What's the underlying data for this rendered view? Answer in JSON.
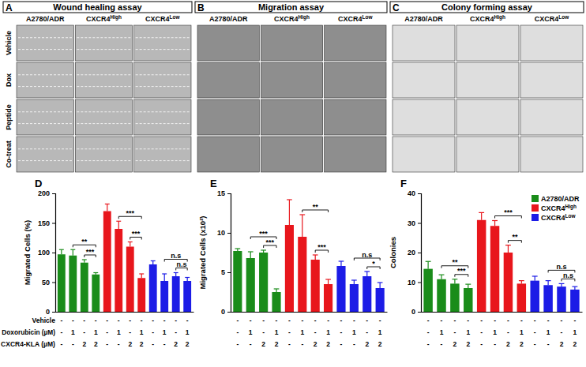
{
  "figure_panels": [
    {
      "panel_label": "A",
      "title": "Wound healing assay",
      "columns": [
        "A2780/ADR",
        "CXCR4High",
        "CXCR4Low"
      ],
      "rows": [
        "Vehicle",
        "Dox",
        "Peptide",
        "Co-treat"
      ]
    },
    {
      "panel_label": "B",
      "title": "Migration assay",
      "columns": [
        "A2780/ADR",
        "CXCR4High",
        "CXCR4Low"
      ]
    },
    {
      "panel_label": "C",
      "title": "Colony forming assay",
      "columns": [
        "A2780/ADR",
        "CXCR4High",
        "CXCR4Low"
      ]
    }
  ],
  "chart_data": [
    {
      "type": "bar",
      "panel_label": "D",
      "y_label": "Migrated Cells (%)",
      "categories": [
        null,
        null,
        null,
        null,
        null,
        null,
        null,
        null,
        null,
        null,
        null,
        null
      ],
      "series": [
        {
          "name": "A2780/ADR",
          "color": "#1a8c1a",
          "values": [
            97,
            95,
            83,
            63,
            null,
            null,
            null,
            null,
            null,
            null,
            null,
            null
          ],
          "errors": [
            8,
            10,
            5,
            3,
            null,
            null,
            null,
            null,
            null,
            null,
            null,
            null
          ]
        },
        {
          "name": "CXCR4High",
          "color": "#e8161c",
          "values": [
            null,
            null,
            null,
            null,
            170,
            140,
            110,
            57,
            null,
            null,
            null,
            null
          ],
          "errors": [
            null,
            null,
            null,
            null,
            12,
            13,
            8,
            7,
            null,
            null,
            null,
            null
          ]
        },
        {
          "name": "CXCR4Low",
          "color": "#1c1ce6",
          "values": [
            null,
            null,
            null,
            null,
            null,
            null,
            null,
            null,
            80,
            52,
            60,
            52
          ],
          "errors": [
            null,
            null,
            null,
            null,
            null,
            null,
            null,
            null,
            6,
            12,
            6,
            6
          ]
        }
      ],
      "ylim": [
        0,
        200
      ],
      "yticks": [
        0,
        50,
        100,
        150,
        200
      ],
      "grid": false,
      "tick_labels": "y",
      "x_table": [
        {
          "label": "Vehicle",
          "values": [
            "-",
            "-",
            "-",
            "-",
            "-",
            "-",
            "-",
            "-",
            "-",
            "-",
            "-",
            "-"
          ]
        },
        {
          "label": "Doxorubicin (µM)",
          "values": [
            "-",
            "1",
            "-",
            "1",
            "-",
            "1",
            "-",
            "1",
            "-",
            "1",
            "-",
            "1"
          ]
        },
        {
          "label": "CXCR4-KLA (µM)",
          "values": [
            "-",
            "-",
            "2",
            "2",
            "-",
            "-",
            "2",
            "2",
            "-",
            "-",
            "2",
            "2"
          ]
        }
      ],
      "annotations": [
        {
          "from": 2,
          "to": 3,
          "label": "***"
        },
        {
          "from": 1,
          "to": 3,
          "label": "**"
        },
        {
          "from": 6,
          "to": 7,
          "label": "***"
        },
        {
          "from": 5,
          "to": 7,
          "label": "***"
        },
        {
          "from": 10,
          "to": 11,
          "label": "n.s"
        },
        {
          "from": 9,
          "to": 11,
          "label": "n.s"
        }
      ]
    },
    {
      "type": "bar",
      "panel_label": "E",
      "y_label": "Migrated Cells (x10²)",
      "categories": [
        null,
        null,
        null,
        null,
        null,
        null,
        null,
        null,
        null,
        null,
        null,
        null
      ],
      "series": [
        {
          "name": "A2780/ADR",
          "color": "#1a8c1a",
          "values": [
            7.7,
            6.8,
            7.5,
            2.5,
            null,
            null,
            null,
            null,
            null,
            null,
            null,
            null
          ],
          "errors": [
            0.3,
            0.8,
            0.3,
            0.4,
            null,
            null,
            null,
            null,
            null,
            null,
            null,
            null
          ]
        },
        {
          "name": "CXCR4High",
          "color": "#e8161c",
          "values": [
            null,
            null,
            null,
            null,
            11,
            9.5,
            6.6,
            3.5,
            null,
            null,
            null,
            null
          ],
          "errors": [
            null,
            null,
            null,
            null,
            3.2,
            2.8,
            0.6,
            0.6,
            null,
            null,
            null,
            null
          ]
        },
        {
          "name": "CXCR4Low",
          "color": "#1c1ce6",
          "values": [
            null,
            null,
            null,
            null,
            null,
            null,
            null,
            null,
            5.8,
            3.5,
            4.5,
            3.0
          ],
          "errors": [
            null,
            null,
            null,
            null,
            null,
            null,
            null,
            null,
            0.6,
            0.5,
            0.6,
            0.7
          ]
        }
      ],
      "ylim": [
        0,
        15
      ],
      "yticks": [
        0,
        5,
        10,
        15
      ],
      "grid": false,
      "tick_labels": "y",
      "x_table": [
        {
          "values": [
            "-",
            "-",
            "-",
            "-",
            "-",
            "-",
            "-",
            "-",
            "-",
            "-",
            "-",
            "-"
          ]
        },
        {
          "values": [
            "-",
            "1",
            "-",
            "1",
            "-",
            "1",
            "-",
            "1",
            "-",
            "1",
            "-",
            "1"
          ]
        },
        {
          "values": [
            "-",
            "-",
            "2",
            "2",
            "-",
            "-",
            "2",
            "2",
            "-",
            "-",
            "2",
            "2"
          ]
        }
      ],
      "annotations": [
        {
          "from": 2,
          "to": 3,
          "label": "***"
        },
        {
          "from": 1,
          "to": 3,
          "label": "***"
        },
        {
          "from": 6,
          "to": 7,
          "label": "***"
        },
        {
          "from": 5,
          "to": 7,
          "label": "**"
        },
        {
          "from": 10,
          "to": 11,
          "label": "*"
        },
        {
          "from": 9,
          "to": 11,
          "label": "n.s"
        }
      ]
    },
    {
      "type": "bar",
      "panel_label": "F",
      "y_label": "Colonies",
      "categories": [
        null,
        null,
        null,
        null,
        null,
        null,
        null,
        null,
        null,
        null,
        null,
        null
      ],
      "series": [
        {
          "name": "A2780/ADR",
          "color": "#1a8c1a",
          "values": [
            14.5,
            11,
            9.5,
            8,
            null,
            null,
            null,
            null,
            null,
            null,
            null,
            null
          ],
          "errors": [
            2.5,
            1.5,
            1.5,
            1.3,
            null,
            null,
            null,
            null,
            null,
            null,
            null,
            null
          ]
        },
        {
          "name": "CXCR4High",
          "color": "#e8161c",
          "values": [
            null,
            null,
            null,
            null,
            31,
            29,
            20,
            9.5,
            null,
            null,
            null,
            null
          ],
          "errors": [
            null,
            null,
            null,
            null,
            2.5,
            1.8,
            2.5,
            1,
            null,
            null,
            null,
            null
          ]
        },
        {
          "name": "CXCR4Low",
          "color": "#1c1ce6",
          "values": [
            null,
            null,
            null,
            null,
            null,
            null,
            null,
            null,
            10.5,
            9,
            8.5,
            7.5
          ],
          "errors": [
            null,
            null,
            null,
            null,
            null,
            null,
            null,
            null,
            1.5,
            1.5,
            1,
            1
          ]
        }
      ],
      "ylim": [
        0,
        40
      ],
      "yticks": [
        0,
        10,
        20,
        30,
        40
      ],
      "grid": false,
      "tick_labels": "y",
      "legend": "upper right",
      "x_table": [
        {
          "values": [
            "-",
            "-",
            "-",
            "-",
            "-",
            "-",
            "-",
            "-",
            "-",
            "-",
            "-",
            "-"
          ]
        },
        {
          "values": [
            "-",
            "1",
            "-",
            "1",
            "-",
            "1",
            "-",
            "1",
            "-",
            "1",
            "-",
            "1"
          ]
        },
        {
          "values": [
            "-",
            "-",
            "2",
            "2",
            "-",
            "-",
            "2",
            "2",
            "-",
            "-",
            "2",
            "2"
          ]
        }
      ],
      "annotations": [
        {
          "from": 2,
          "to": 3,
          "label": "***"
        },
        {
          "from": 1,
          "to": 3,
          "label": "**"
        },
        {
          "from": 6,
          "to": 7,
          "label": "**"
        },
        {
          "from": 5,
          "to": 7,
          "label": "***"
        },
        {
          "from": 10,
          "to": 11,
          "label": "n.s"
        },
        {
          "from": 9,
          "to": 11,
          "label": "n.s"
        }
      ]
    }
  ]
}
